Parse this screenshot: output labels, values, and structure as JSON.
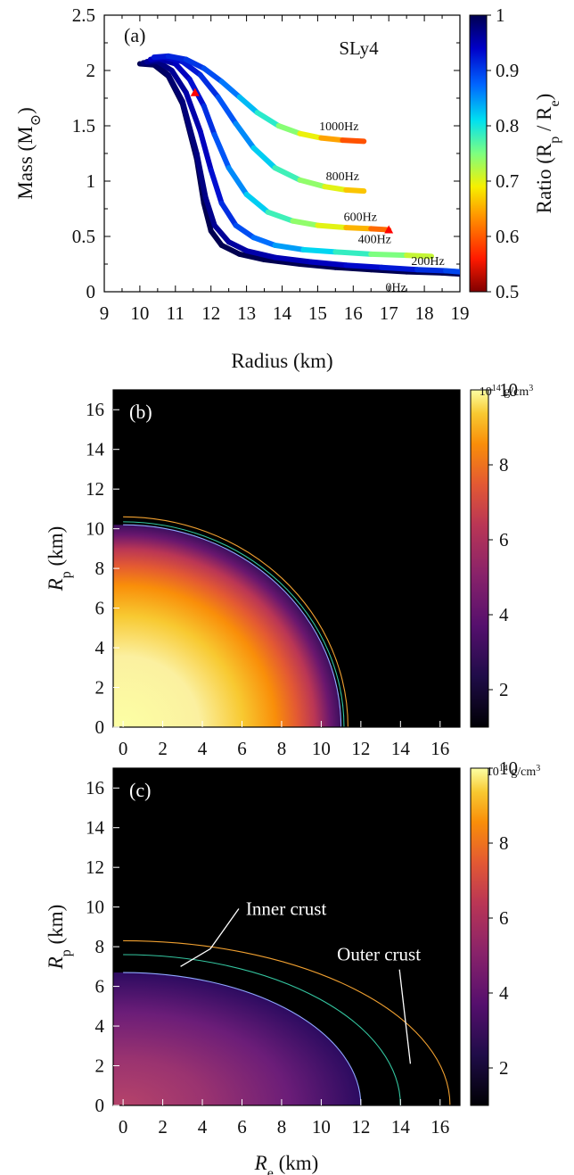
{
  "chart_data": [
    {
      "type": "line",
      "panel_label": "(a)",
      "annotation": "SLy4",
      "xlabel": "Radius (km)",
      "ylabel": "Mass (M",
      "ylabel_sub": "⊙",
      "ylabel_end": ")",
      "xlim": [
        9,
        19
      ],
      "ylim": [
        0,
        2.5
      ],
      "xticks": [
        "9",
        "10",
        "11",
        "12",
        "13",
        "14",
        "15",
        "16",
        "17",
        "18",
        "19"
      ],
      "yticks": [
        "0",
        "0.5",
        "1",
        "1.5",
        "2",
        "2.5"
      ],
      "colorbar": {
        "label": "Ratio (R",
        "label_sub_p": "p",
        "label_mid": " / R",
        "label_sub_e": "e",
        "label_end": ")",
        "range": [
          0.5,
          1
        ],
        "ticks": [
          "0.5",
          "0.6",
          "0.7",
          "0.8",
          "0.9",
          "1"
        ]
      },
      "series": [
        {
          "label": "0Hz",
          "x": [
            10.0,
            10.4,
            10.8,
            11.2,
            11.6,
            11.8,
            12.0,
            12.3,
            12.8,
            13.5,
            14.5,
            15.5,
            16.5,
            17.5,
            18.5,
            19.0
          ],
          "y": [
            2.06,
            2.05,
            1.95,
            1.7,
            1.2,
            0.8,
            0.55,
            0.42,
            0.34,
            0.29,
            0.25,
            0.22,
            0.2,
            0.18,
            0.17,
            0.16
          ],
          "ratio": [
            1.0,
            1.0,
            1.0,
            1.0,
            1.0,
            1.0,
            1.0,
            1.0,
            1.0,
            1.0,
            1.0,
            1.0,
            1.0,
            1.0,
            1.0,
            1.0
          ]
        },
        {
          "label": "200Hz",
          "x": [
            10.05,
            10.4,
            10.8,
            11.2,
            11.6,
            11.85,
            12.1,
            12.5,
            13.0,
            13.8,
            14.8,
            15.8,
            16.8,
            17.8,
            18.6,
            19.0
          ],
          "y": [
            2.06,
            2.06,
            1.96,
            1.72,
            1.25,
            0.85,
            0.6,
            0.45,
            0.37,
            0.31,
            0.27,
            0.24,
            0.22,
            0.2,
            0.19,
            0.18
          ],
          "ratio": [
            0.99,
            0.99,
            0.99,
            0.98,
            0.98,
            0.97,
            0.97,
            0.96,
            0.96,
            0.95,
            0.95,
            0.94,
            0.93,
            0.92,
            0.9,
            0.89
          ]
        },
        {
          "label": "400Hz",
          "x": [
            10.1,
            10.5,
            10.9,
            11.3,
            11.7,
            12.0,
            12.3,
            12.7,
            13.2,
            13.8,
            14.6,
            15.5,
            16.5,
            17.5,
            18.2
          ],
          "y": [
            2.07,
            2.08,
            2.0,
            1.8,
            1.45,
            1.1,
            0.8,
            0.6,
            0.49,
            0.42,
            0.38,
            0.36,
            0.34,
            0.33,
            0.32
          ],
          "ratio": [
            0.98,
            0.98,
            0.97,
            0.96,
            0.95,
            0.94,
            0.92,
            0.9,
            0.88,
            0.86,
            0.83,
            0.8,
            0.77,
            0.73,
            0.7
          ]
        },
        {
          "label": "600Hz",
          "x": [
            10.2,
            10.6,
            11.0,
            11.4,
            11.8,
            12.1,
            12.5,
            13.0,
            13.6,
            14.3,
            15.0,
            15.8,
            16.5,
            17.0
          ],
          "y": [
            2.08,
            2.1,
            2.06,
            1.92,
            1.68,
            1.42,
            1.12,
            0.88,
            0.72,
            0.64,
            0.6,
            0.58,
            0.57,
            0.56
          ],
          "ratio": [
            0.97,
            0.96,
            0.95,
            0.94,
            0.92,
            0.9,
            0.87,
            0.84,
            0.8,
            0.76,
            0.72,
            0.68,
            0.63,
            0.59
          ]
        },
        {
          "label": "800Hz",
          "x": [
            10.3,
            10.7,
            11.2,
            11.7,
            12.2,
            12.7,
            13.2,
            13.8,
            14.5,
            15.2,
            15.8,
            16.3
          ],
          "y": [
            2.1,
            2.12,
            2.08,
            1.96,
            1.76,
            1.52,
            1.3,
            1.12,
            1.01,
            0.95,
            0.92,
            0.91
          ],
          "ratio": [
            0.95,
            0.94,
            0.93,
            0.92,
            0.9,
            0.87,
            0.84,
            0.8,
            0.76,
            0.72,
            0.68,
            0.65
          ]
        },
        {
          "label": "1000Hz",
          "x": [
            10.4,
            10.8,
            11.3,
            11.8,
            12.3,
            12.8,
            13.3,
            13.9,
            14.5,
            15.1,
            15.7,
            16.3
          ],
          "y": [
            2.12,
            2.13,
            2.1,
            2.02,
            1.9,
            1.76,
            1.62,
            1.5,
            1.43,
            1.39,
            1.37,
            1.36
          ],
          "ratio": [
            0.93,
            0.92,
            0.91,
            0.9,
            0.88,
            0.85,
            0.81,
            0.77,
            0.72,
            0.67,
            0.62,
            0.57
          ]
        }
      ],
      "markers": [
        {
          "x": 11.55,
          "y": 1.8,
          "shape": "triangle"
        },
        {
          "x": 17.0,
          "y": 0.56,
          "shape": "triangle"
        }
      ]
    },
    {
      "type": "heatmap",
      "panel_label": "(b)",
      "xlabel": "",
      "ylabel": "R",
      "ylabel_sub": "p",
      "ylabel_end": " (km)",
      "xlim": [
        -0.5,
        17
      ],
      "ylim": [
        0,
        17
      ],
      "xticks": [
        "0",
        "2",
        "4",
        "6",
        "8",
        "10",
        "12",
        "14",
        "16"
      ],
      "yticks": [
        "0",
        "2",
        "4",
        "6",
        "8",
        "10",
        "12",
        "14",
        "16"
      ],
      "colorbar": {
        "unit": "10",
        "unit_exp": "14",
        "unit_end": " g/cm",
        "unit_exp2": "3",
        "range": [
          1,
          10
        ],
        "ticks": [
          "2",
          "4",
          "6",
          "8",
          "10"
        ]
      },
      "surface": {
        "re": 11.0,
        "rp": 10.2
      },
      "contours": [
        {
          "re": 11.0,
          "rp": 10.2,
          "color": "#8fa6ff"
        },
        {
          "re": 11.15,
          "rp": 10.35,
          "color": "#34c6a0"
        },
        {
          "re": 11.35,
          "rp": 10.6,
          "color": "#f0a030"
        }
      ],
      "core_density": 10
    },
    {
      "type": "heatmap",
      "panel_label": "(c)",
      "xlabel": "R",
      "xlabel_sub": "e",
      "xlabel_end": " (km)",
      "ylabel": "R",
      "ylabel_sub": "p",
      "ylabel_end": " (km)",
      "xlim": [
        -0.5,
        17
      ],
      "ylim": [
        0,
        17
      ],
      "xticks": [
        "0",
        "2",
        "4",
        "6",
        "8",
        "10",
        "12",
        "14",
        "16"
      ],
      "yticks": [
        "0",
        "2",
        "4",
        "6",
        "8",
        "10",
        "12",
        "14",
        "16"
      ],
      "colorbar": {
        "unit": "10",
        "unit_exp": "14",
        "unit_end": " g/cm",
        "unit_exp2": "3",
        "range": [
          1,
          10
        ],
        "ticks": [
          "2",
          "4",
          "6",
          "8",
          "10"
        ]
      },
      "surface": {
        "re": 12.0,
        "rp": 6.7
      },
      "contours": [
        {
          "re": 12.0,
          "rp": 6.7,
          "color": "#8fa6ff"
        },
        {
          "re": 14.0,
          "rp": 7.6,
          "color": "#34c6a0"
        },
        {
          "re": 16.5,
          "rp": 8.3,
          "color": "#f0a030"
        }
      ],
      "core_density": 4.8,
      "annotations": [
        {
          "text": "Inner crust",
          "text_x": 6.2,
          "text_y": 9.6,
          "point_x": 2.9,
          "point_y": 7.0
        },
        {
          "text": "Outer crust",
          "text_x": 10.8,
          "text_y": 7.3,
          "point_x": 14.5,
          "point_y": 2.1
        }
      ]
    }
  ]
}
